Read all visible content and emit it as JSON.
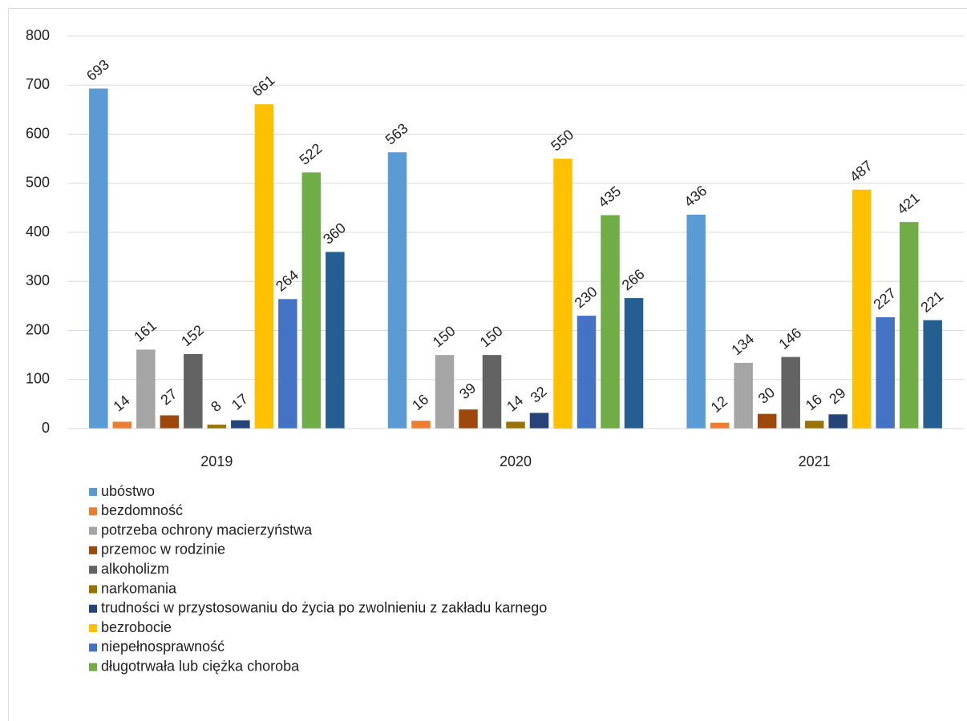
{
  "chart_data": {
    "type": "bar",
    "categories": [
      "2019",
      "2020",
      "2021"
    ],
    "ylim": [
      0,
      800
    ],
    "yticks": [
      0,
      100,
      200,
      300,
      400,
      500,
      600,
      700,
      800
    ],
    "grid": true,
    "series": [
      {
        "name": "ubóstwo",
        "color": "#5b9bd5",
        "values": [
          693,
          563,
          436
        ]
      },
      {
        "name": "bezdomność",
        "color": "#ed7d31",
        "values": [
          14,
          16,
          12
        ]
      },
      {
        "name": "potrzeba ochrony macierzyństwa",
        "color": "#a5a5a5",
        "values": [
          161,
          150,
          134
        ]
      },
      {
        "name": "przemoc w rodzinie",
        "color": "#9e480e",
        "values": [
          27,
          39,
          30
        ]
      },
      {
        "name": "alkoholizm",
        "color": "#636363",
        "values": [
          152,
          150,
          146
        ]
      },
      {
        "name": "narkomania",
        "color": "#997300",
        "values": [
          8,
          14,
          16
        ]
      },
      {
        "name": "trudności w przystosowaniu do życia po zwolnieniu z zakładu karnego",
        "color": "#264478",
        "values": [
          17,
          32,
          29
        ]
      },
      {
        "name": "bezrobocie",
        "color": "#ffc000",
        "values": [
          661,
          550,
          487
        ]
      },
      {
        "name": "niepełnosprawność",
        "color": "#4472c4",
        "values": [
          264,
          230,
          227
        ]
      },
      {
        "name": "długotrwała lub ciężka choroba",
        "color": "#70ad47",
        "values": [
          522,
          435,
          421
        ]
      },
      {
        "color": "#255e91",
        "values": [
          360,
          266,
          221
        ]
      }
    ]
  }
}
